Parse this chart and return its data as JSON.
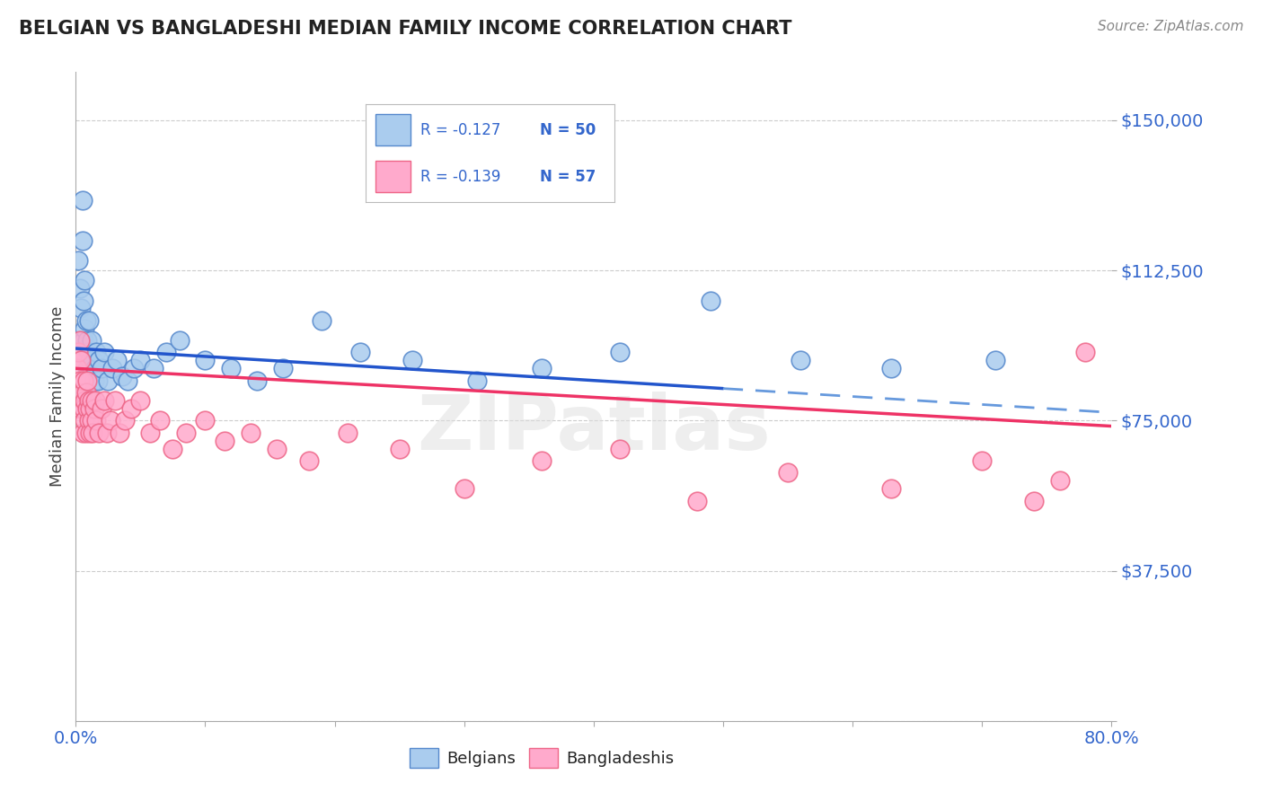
{
  "title": "BELGIAN VS BANGLADESHI MEDIAN FAMILY INCOME CORRELATION CHART",
  "source": "Source: ZipAtlas.com",
  "ylabel": "Median Family Income",
  "xlim": [
    0.0,
    0.8
  ],
  "ylim": [
    0,
    162000
  ],
  "yticks": [
    0,
    37500,
    75000,
    112500,
    150000
  ],
  "ytick_labels": [
    "",
    "$37,500",
    "$75,000",
    "$112,500",
    "$150,000"
  ],
  "xticks": [
    0.0,
    0.1,
    0.2,
    0.3,
    0.4,
    0.5,
    0.6,
    0.7,
    0.8
  ],
  "xtick_labels_visible": [
    "0.0%",
    "",
    "",
    "",
    "",
    "",
    "",
    "",
    "80.0%"
  ],
  "watermark": "ZIPatlas",
  "blue_color": "#aaccee",
  "pink_color": "#ffaacc",
  "blue_edge": "#5588cc",
  "pink_edge": "#ee6688",
  "trend_blue_solid": "#2255cc",
  "trend_blue_dash": "#6699dd",
  "trend_pink": "#ee3366",
  "grid_color": "#cccccc",
  "title_color": "#222222",
  "axis_label_color": "#444444",
  "ytick_color": "#3366cc",
  "xtick_color": "#3366cc",
  "legend_color": "#3366cc",
  "blue_R": "R = -0.127",
  "blue_N": "N = 50",
  "pink_R": "R = -0.139",
  "pink_N": "N = 57",
  "belgians_label": "Belgians",
  "bangladeshis_label": "Bangladeshis",
  "blue_scatter_x": [
    0.002,
    0.003,
    0.004,
    0.005,
    0.005,
    0.006,
    0.006,
    0.007,
    0.007,
    0.008,
    0.008,
    0.009,
    0.009,
    0.01,
    0.01,
    0.011,
    0.012,
    0.012,
    0.013,
    0.014,
    0.015,
    0.016,
    0.017,
    0.018,
    0.02,
    0.022,
    0.025,
    0.028,
    0.032,
    0.036,
    0.04,
    0.045,
    0.05,
    0.06,
    0.07,
    0.08,
    0.1,
    0.12,
    0.14,
    0.16,
    0.19,
    0.22,
    0.26,
    0.31,
    0.36,
    0.42,
    0.49,
    0.56,
    0.63,
    0.71
  ],
  "blue_scatter_y": [
    115000,
    108000,
    103000,
    120000,
    130000,
    95000,
    105000,
    98000,
    110000,
    93000,
    100000,
    95000,
    88000,
    92000,
    100000,
    90000,
    88000,
    95000,
    90000,
    85000,
    88000,
    92000,
    85000,
    90000,
    88000,
    92000,
    85000,
    88000,
    90000,
    86000,
    85000,
    88000,
    90000,
    88000,
    92000,
    95000,
    90000,
    88000,
    85000,
    88000,
    100000,
    92000,
    90000,
    85000,
    88000,
    92000,
    105000,
    90000,
    88000,
    90000
  ],
  "pink_scatter_x": [
    0.001,
    0.002,
    0.003,
    0.003,
    0.004,
    0.004,
    0.005,
    0.005,
    0.006,
    0.006,
    0.007,
    0.007,
    0.008,
    0.008,
    0.009,
    0.009,
    0.01,
    0.01,
    0.011,
    0.011,
    0.012,
    0.012,
    0.013,
    0.014,
    0.015,
    0.016,
    0.018,
    0.02,
    0.022,
    0.024,
    0.027,
    0.03,
    0.034,
    0.038,
    0.043,
    0.05,
    0.057,
    0.065,
    0.075,
    0.085,
    0.1,
    0.115,
    0.135,
    0.155,
    0.18,
    0.21,
    0.25,
    0.3,
    0.36,
    0.42,
    0.48,
    0.55,
    0.63,
    0.7,
    0.74,
    0.76,
    0.78
  ],
  "pink_scatter_y": [
    88000,
    92000,
    85000,
    95000,
    78000,
    90000,
    82000,
    72000,
    78000,
    85000,
    80000,
    75000,
    82000,
    72000,
    78000,
    85000,
    75000,
    80000,
    72000,
    78000,
    75000,
    80000,
    72000,
    78000,
    80000,
    75000,
    72000,
    78000,
    80000,
    72000,
    75000,
    80000,
    72000,
    75000,
    78000,
    80000,
    72000,
    75000,
    68000,
    72000,
    75000,
    70000,
    72000,
    68000,
    65000,
    72000,
    68000,
    58000,
    65000,
    68000,
    55000,
    62000,
    58000,
    65000,
    55000,
    60000,
    92000
  ]
}
